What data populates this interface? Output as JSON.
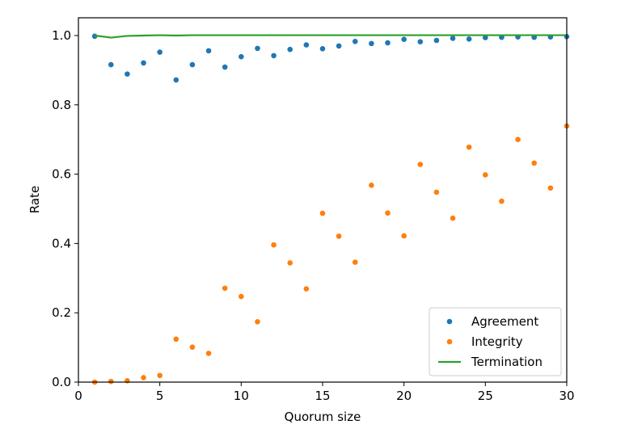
{
  "chart_data": {
    "type": "scatter",
    "title": "",
    "xlabel": "Quorum size",
    "ylabel": "Rate",
    "xlim": [
      0,
      30
    ],
    "ylim": [
      0,
      1.05
    ],
    "xticks": [
      0,
      5,
      10,
      15,
      20,
      25,
      30
    ],
    "yticks": [
      0.0,
      0.2,
      0.4,
      0.6,
      0.8,
      1.0
    ],
    "xtick_labels": [
      "0",
      "5",
      "10",
      "15",
      "20",
      "25",
      "30"
    ],
    "ytick_labels": [
      "0.0",
      "0.2",
      "0.4",
      "0.6",
      "0.8",
      "1.0"
    ],
    "grid": false,
    "legend_position": "bottom-right",
    "series": [
      {
        "name": "Agreement",
        "kind": "scatter",
        "color": "#1f77b4",
        "x": [
          1,
          2,
          3,
          4,
          5,
          6,
          7,
          8,
          9,
          10,
          11,
          12,
          13,
          14,
          15,
          16,
          17,
          18,
          19,
          20,
          21,
          22,
          23,
          24,
          25,
          26,
          27,
          28,
          29,
          30
        ],
        "y": [
          0.998,
          0.916,
          0.889,
          0.921,
          0.952,
          0.872,
          0.916,
          0.956,
          0.909,
          0.939,
          0.963,
          0.942,
          0.96,
          0.973,
          0.962,
          0.97,
          0.983,
          0.977,
          0.979,
          0.989,
          0.982,
          0.986,
          0.992,
          0.99,
          0.994,
          0.995,
          0.996,
          0.995,
          0.996,
          0.997
        ]
      },
      {
        "name": "Integrity",
        "kind": "scatter",
        "color": "#ff7f0e",
        "x": [
          1,
          2,
          3,
          4,
          5,
          6,
          7,
          8,
          9,
          10,
          11,
          12,
          13,
          14,
          15,
          16,
          17,
          18,
          19,
          20,
          21,
          22,
          23,
          24,
          25,
          26,
          27,
          28,
          29,
          30
        ],
        "y": [
          0.0,
          0.002,
          0.004,
          0.013,
          0.019,
          0.124,
          0.101,
          0.083,
          0.271,
          0.247,
          0.174,
          0.396,
          0.344,
          0.269,
          0.487,
          0.421,
          0.346,
          0.568,
          0.488,
          0.422,
          0.628,
          0.548,
          0.473,
          0.678,
          0.598,
          0.522,
          0.7,
          0.632,
          0.56,
          0.739
        ]
      },
      {
        "name": "Termination",
        "kind": "line",
        "color": "#2ca02c",
        "x": [
          1,
          2,
          3,
          4,
          5,
          6,
          7,
          8,
          9,
          10,
          11,
          12,
          13,
          14,
          15,
          16,
          17,
          18,
          19,
          20,
          21,
          22,
          23,
          24,
          25,
          26,
          27,
          28,
          29,
          30
        ],
        "y": [
          1.0,
          0.994,
          0.999,
          1.0,
          1.001,
          1.0,
          1.001,
          1.001,
          1.001,
          1.001,
          1.001,
          1.001,
          1.001,
          1.001,
          1.001,
          1.001,
          1.001,
          1.001,
          1.001,
          1.001,
          1.001,
          1.001,
          1.001,
          1.001,
          1.001,
          1.001,
          1.001,
          1.001,
          1.001,
          1.001
        ]
      }
    ]
  }
}
